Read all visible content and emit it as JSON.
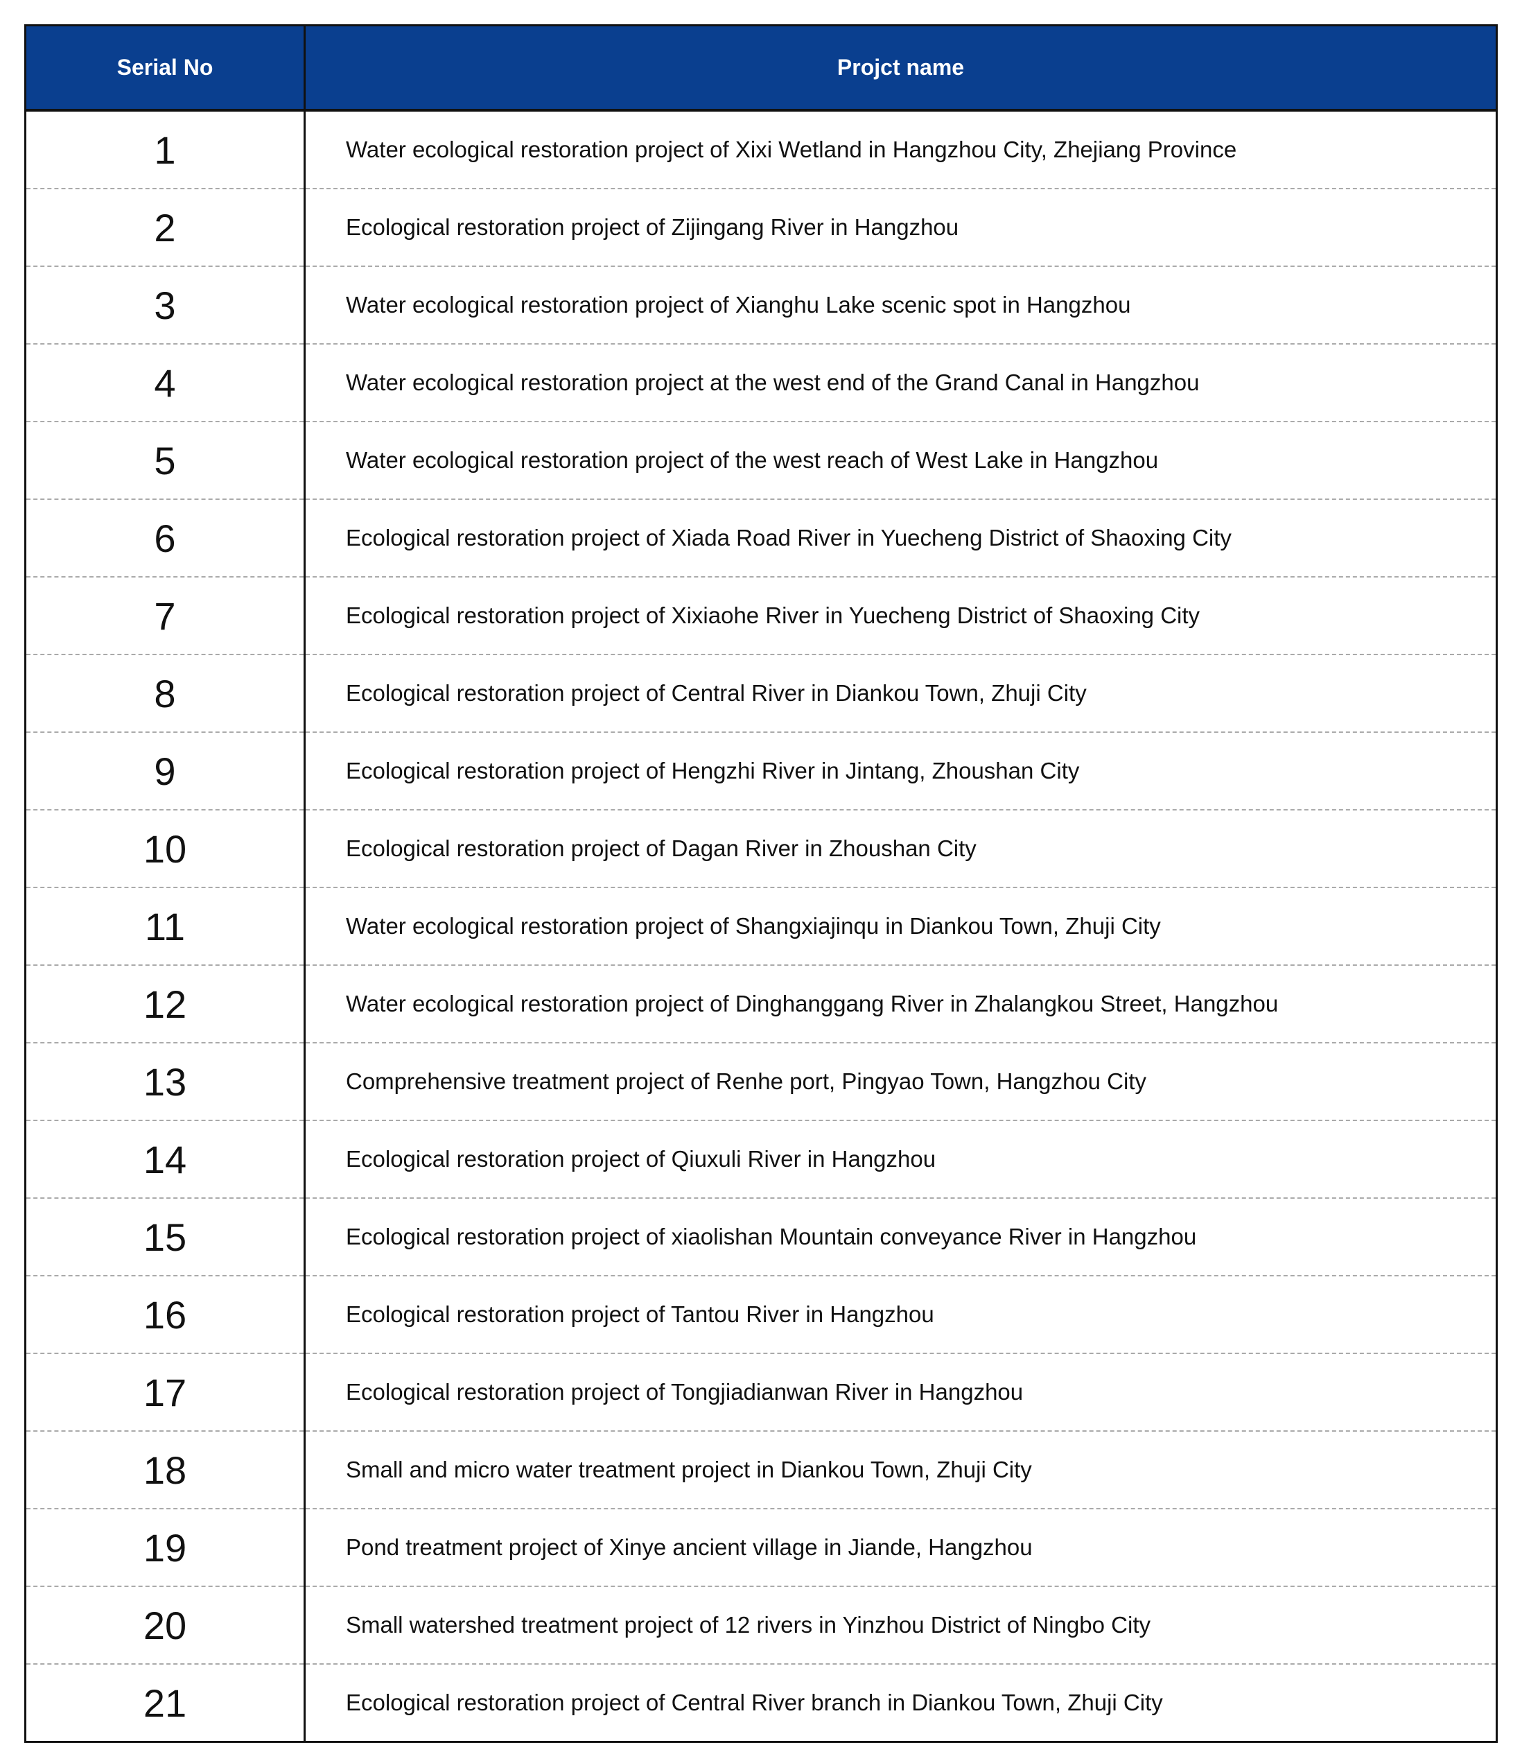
{
  "table": {
    "headers": [
      "Serial No",
      "Projct name"
    ],
    "header_color": "#0a3f8f",
    "rows": [
      {
        "no": "1",
        "name": "Water ecological restoration project of Xixi Wetland in Hangzhou City, Zhejiang Province"
      },
      {
        "no": "2",
        "name": "Ecological restoration project of Zijingang River in Hangzhou"
      },
      {
        "no": "3",
        "name": "Water ecological restoration project of Xianghu Lake scenic spot in Hangzhou"
      },
      {
        "no": "4",
        "name": "Water ecological restoration project at the west end of the Grand Canal in Hangzhou"
      },
      {
        "no": "5",
        "name": "Water ecological restoration project of the west reach of West Lake in Hangzhou"
      },
      {
        "no": "6",
        "name": "Ecological restoration project of Xiada Road River in Yuecheng District of Shaoxing City"
      },
      {
        "no": "7",
        "name": "Ecological restoration project of Xixiaohe River in Yuecheng District of Shaoxing City"
      },
      {
        "no": "8",
        "name": "Ecological restoration project of Central River in Diankou Town, Zhuji City"
      },
      {
        "no": "9",
        "name": "Ecological restoration project of Hengzhi River in Jintang, Zhoushan City"
      },
      {
        "no": "10",
        "name": "Ecological restoration project of Dagan River in Zhoushan City"
      },
      {
        "no": "11",
        "name": "Water ecological restoration project of Shangxiajinqu in Diankou Town, Zhuji City"
      },
      {
        "no": "12",
        "name": "Water ecological restoration project of Dinghanggang River in Zhalangkou Street, Hangzhou"
      },
      {
        "no": "13",
        "name": "Comprehensive treatment project of Renhe port, Pingyao Town, Hangzhou City"
      },
      {
        "no": "14",
        "name": "Ecological restoration project of Qiuxuli River in Hangzhou"
      },
      {
        "no": "15",
        "name": "Ecological restoration project of xiaolishan Mountain conveyance River in Hangzhou"
      },
      {
        "no": "16",
        "name": "Ecological restoration project of Tantou River in Hangzhou"
      },
      {
        "no": "17",
        "name": "Ecological restoration project of Tongjiadianwan River in Hangzhou"
      },
      {
        "no": "18",
        "name": "Small and micro water treatment project in Diankou Town, Zhuji City"
      },
      {
        "no": "19",
        "name": "Pond treatment project of Xinye ancient village in Jiande, Hangzhou"
      },
      {
        "no": "20",
        "name": "Small watershed treatment project of 12 rivers in Yinzhou District of Ningbo City"
      },
      {
        "no": "21",
        "name": "Ecological restoration project of Central River branch in Diankou Town, Zhuji City"
      }
    ]
  }
}
